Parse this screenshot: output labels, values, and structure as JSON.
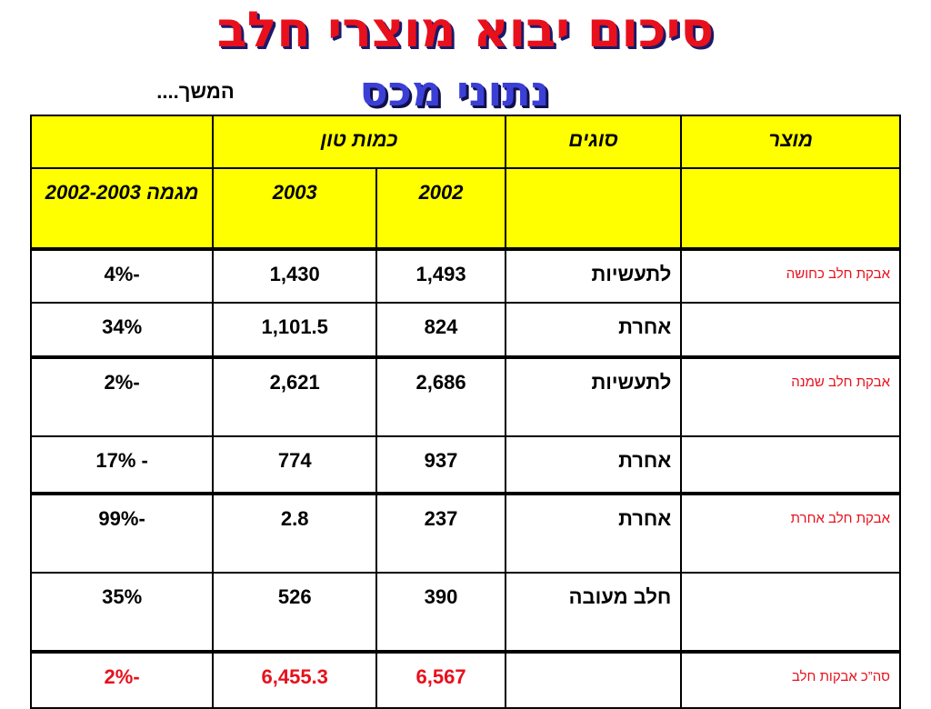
{
  "title": "סיכום יבוא מוצרי חלב",
  "subtitle": "נתוני מכס",
  "continued": "המשך....",
  "table": {
    "header": {
      "product": "מוצר",
      "types": "סוגים",
      "quantity_ton": "כמות טון",
      "year_2002": "2002",
      "year_2003": "2003",
      "trend": "מגמה 2002-2003"
    },
    "rows": [
      {
        "product": "אבקת חלב כחושה",
        "type": "לתעשיות",
        "v2002": "1,493",
        "v2003": "1,430",
        "trend": "-4%"
      },
      {
        "product": "",
        "type": "אחרת",
        "v2002": "824",
        "v2003": "1,101.5",
        "trend": "34%"
      },
      {
        "product": "אבקת חלב שמנה",
        "type": "לתעשיות",
        "v2002": "2,686",
        "v2003": "2,621",
        "trend": "-2%"
      },
      {
        "product": "",
        "type": "אחרת",
        "v2002": "937",
        "v2003": "774",
        "trend": "- 17%"
      },
      {
        "product": "אבקת חלב אחרת",
        "type": "אחרת",
        "v2002": "237",
        "v2003": "2.8",
        "trend": "-99%"
      },
      {
        "product": "",
        "type": "חלב מעובה",
        "v2002": "390",
        "v2003": "526",
        "trend": "35%"
      },
      {
        "product": "סה”כ אבקות חלב",
        "type": "",
        "v2002": "6,567",
        "v2003": "6,455.3",
        "trend": "-2%"
      }
    ]
  },
  "colors": {
    "title": "#e8101c",
    "subtitle": "#3b3fd6",
    "header_bg": "#ffff00",
    "product_text": "#e8101c",
    "total_text": "#e8101c"
  }
}
